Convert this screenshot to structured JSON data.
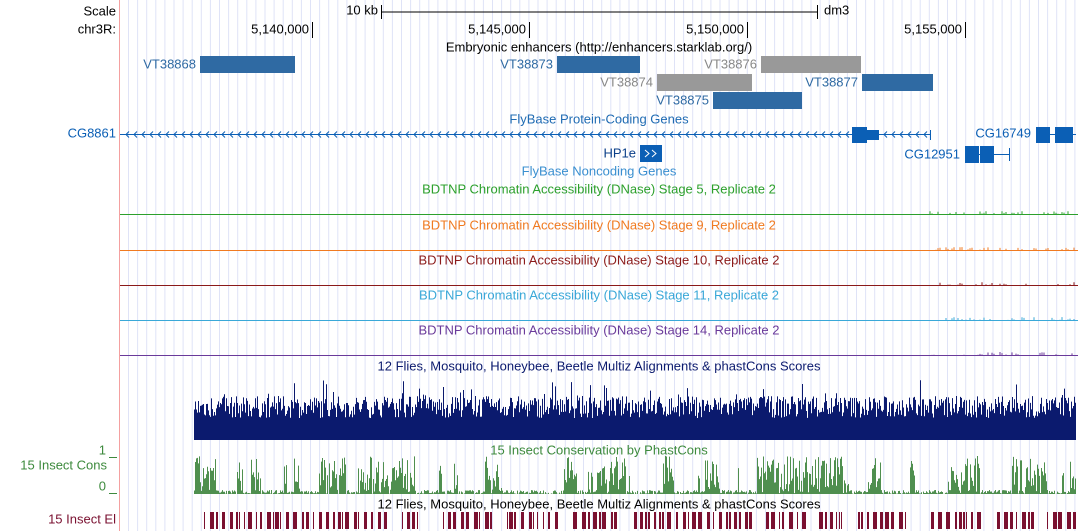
{
  "ruler": {
    "scale": "Scale",
    "scale_bar": "10 kb",
    "assembly": "dm3",
    "chrom": "chr3R:",
    "positions": [
      "5,140,000",
      "5,145,000",
      "5,150,000",
      "5,155,000"
    ]
  },
  "tracks": {
    "enhancers": {
      "title": "Embryonic enhancers (http://enhancers.starklab.org/)",
      "items": [
        "VT38868",
        "VT38873",
        "VT38876",
        "VT38874",
        "VT38877",
        "VT38875"
      ]
    },
    "protein_coding": {
      "title": "FlyBase Protein-Coding Genes",
      "genes": [
        "CG8861",
        "HP1e",
        "CG12951",
        "CG16749"
      ]
    },
    "noncoding": {
      "title": "FlyBase Noncoding Genes"
    },
    "dnase": [
      "BDTNP Chromatin Accessibility (DNase) Stage 5, Replicate 2",
      "BDTNP Chromatin Accessibility (DNase) Stage 9, Replicate 2",
      "BDTNP Chromatin Accessibility (DNase) Stage 10, Replicate 2",
      "BDTNP Chromatin Accessibility (DNase) Stage 11, Replicate 2",
      "BDTNP Chromatin Accessibility (DNase) Stage 14, Replicate 2"
    ],
    "multiz": {
      "title": "12 Flies, Mosquito, Honeybee, Beetle Multiz Alignments & phastCons Scores"
    },
    "phastcons": {
      "title": "15 Insect Conservation by PhastCons",
      "label": "15 Insect Cons",
      "max": "1",
      "min": "0"
    },
    "elements": {
      "title": "12 Flies, Mosquito, Honeybee, Beetle Multiz Alignments & phastCons Scores",
      "label": "15 Insect El"
    }
  }
}
